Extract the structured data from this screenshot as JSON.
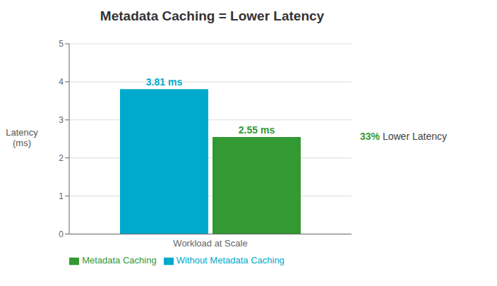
{
  "chart_data": {
    "type": "bar",
    "title": "Metadata Caching = Lower Latency",
    "ylabel": "Latency\n(ms)",
    "categories": [
      "Workload at Scale"
    ],
    "series": [
      {
        "name": "Without Metadata Caching",
        "color": "#00AACC",
        "values": [
          3.81
        ],
        "value_labels": [
          "3.81 ms"
        ]
      },
      {
        "name": "Metadata Caching",
        "color": "#339933",
        "values": [
          2.55
        ],
        "value_labels": [
          "2.55 ms"
        ]
      }
    ],
    "ylim": [
      0,
      5
    ],
    "yticks": [
      0,
      1,
      2,
      3,
      4,
      5
    ],
    "grid": true,
    "legend": "bottom",
    "data_labels": true,
    "annotations": [
      {
        "text": "33%",
        "color": "#339933"
      },
      {
        "text": " Lower Latency",
        "color": "#404040"
      }
    ]
  }
}
